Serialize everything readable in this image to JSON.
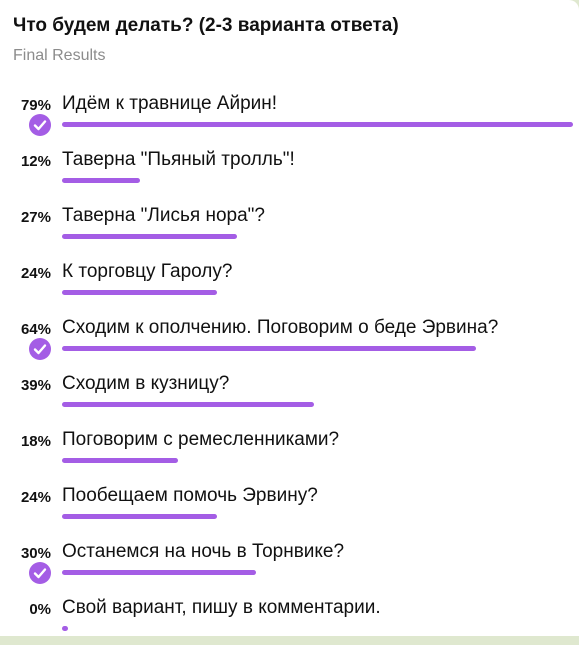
{
  "poll": {
    "question": "Что будем делать? (2-3 варианта ответа)",
    "status": "Final Results",
    "accent_color": "#a45de5",
    "options": [
      {
        "percent_label": "79%",
        "percent": 79,
        "text": "Идём к травнице Айрин!",
        "chosen": true
      },
      {
        "percent_label": "12%",
        "percent": 12,
        "text": "Таверна \"Пьяный тролль\"!",
        "chosen": false
      },
      {
        "percent_label": "27%",
        "percent": 27,
        "text": "Таверна \"Лисья нора\"?",
        "chosen": false
      },
      {
        "percent_label": "24%",
        "percent": 24,
        "text": "К торговцу Гаролу?",
        "chosen": false
      },
      {
        "percent_label": "64%",
        "percent": 64,
        "text": "Сходим к ополчению. Поговорим о беде Эрвина?",
        "chosen": true
      },
      {
        "percent_label": "39%",
        "percent": 39,
        "text": "Сходим в кузницу?",
        "chosen": false
      },
      {
        "percent_label": "18%",
        "percent": 18,
        "text": "Поговорим с ремесленниками?",
        "chosen": false
      },
      {
        "percent_label": "24%",
        "percent": 24,
        "text": "Пообещаем помочь Эрвину?",
        "chosen": false
      },
      {
        "percent_label": "30%",
        "percent": 30,
        "text": "Останемся на ночь в Торнвике?",
        "chosen": true
      },
      {
        "percent_label": "0%",
        "percent": 0,
        "text": "Свой вариант, пишу в комментарии.",
        "chosen": false
      }
    ]
  }
}
